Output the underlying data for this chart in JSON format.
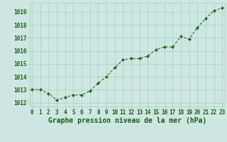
{
  "x": [
    0,
    1,
    2,
    3,
    4,
    5,
    6,
    7,
    8,
    9,
    10,
    11,
    12,
    13,
    14,
    15,
    16,
    17,
    18,
    19,
    20,
    21,
    22,
    23
  ],
  "y": [
    1013.0,
    1013.0,
    1012.7,
    1012.2,
    1012.4,
    1012.6,
    1012.6,
    1012.9,
    1013.5,
    1014.0,
    1014.7,
    1015.3,
    1015.4,
    1015.4,
    1015.6,
    1016.1,
    1016.3,
    1016.3,
    1017.1,
    1016.9,
    1017.8,
    1018.5,
    1019.1,
    1019.3
  ],
  "line_color": "#1a6b1a",
  "marker_color": "#1a6b1a",
  "bg_color": "#cce8e0",
  "grid_color": "#aaccc4",
  "label_color": "#1a5c1a",
  "xlabel": "Graphe pression niveau de la mer (hPa)",
  "ylim_min": 1011.7,
  "ylim_max": 1019.7,
  "yticks": [
    1012,
    1013,
    1014,
    1015,
    1016,
    1017,
    1018,
    1019
  ],
  "xticks": [
    0,
    1,
    2,
    3,
    4,
    5,
    6,
    7,
    8,
    9,
    10,
    11,
    12,
    13,
    14,
    15,
    16,
    17,
    18,
    19,
    20,
    21,
    22,
    23
  ],
  "tick_fontsize": 5.5,
  "xlabel_fontsize": 7.0,
  "figwidth": 3.2,
  "figheight": 2.0,
  "dpi": 100
}
